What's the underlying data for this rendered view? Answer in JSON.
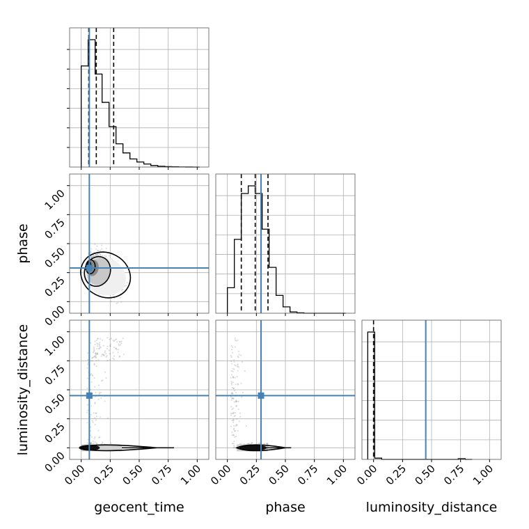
{
  "chart_data": {
    "type": "corner",
    "parameters": [
      "geocent_time",
      "phase",
      "luminosity_distance"
    ],
    "axis_labels": {
      "x": [
        "geocent_time",
        "phase",
        "luminosity_distance"
      ],
      "y": [
        "phase",
        "luminosity_distance"
      ]
    },
    "ticks": [
      0.0,
      0.25,
      0.5,
      0.75,
      1.0
    ],
    "tick_labels": [
      "0.00",
      "0.25",
      "0.50",
      "0.75",
      "1.00"
    ],
    "xlim": [
      -0.1,
      1.1
    ],
    "ylim": [
      -0.1,
      1.1
    ],
    "grid": true,
    "truths": {
      "geocent_time": 0.07,
      "phase": 0.29,
      "luminosity_distance": 0.45
    },
    "colors": {
      "truth": "#4682b4",
      "hist": "#000000",
      "quantile": "#000000",
      "points": "#555555"
    },
    "histograms": [
      {
        "parameter": "geocent_time",
        "bin_edges": [
          0.0,
          0.06,
          0.12,
          0.18,
          0.24,
          0.3,
          0.36,
          0.42,
          0.48,
          0.54,
          0.6,
          0.66,
          0.72,
          0.78,
          0.84,
          0.9,
          0.96,
          1.02
        ],
        "counts": [
          1.0,
          1.26,
          0.92,
          0.64,
          0.4,
          0.23,
          0.14,
          0.08,
          0.05,
          0.03,
          0.015,
          0.008,
          0.004,
          0.002,
          0.001,
          0.0005,
          0.0
        ],
        "quantiles": [
          0.065,
          0.13,
          0.28
        ]
      },
      {
        "parameter": "phase",
        "bin_edges": [
          0.0,
          0.06,
          0.12,
          0.18,
          0.24,
          0.3,
          0.36,
          0.42,
          0.48,
          0.54,
          0.6,
          0.66,
          0.72,
          0.78,
          0.84,
          0.9,
          0.96,
          1.02
        ],
        "counts": [
          0.2,
          0.58,
          0.94,
          1.0,
          0.94,
          0.66,
          0.36,
          0.14,
          0.05,
          0.01,
          0.003,
          0.0,
          0.0,
          0.0,
          0.0,
          0.0,
          0.0
        ],
        "quantiles": [
          0.12,
          0.24,
          0.35
        ]
      },
      {
        "parameter": "luminosity_distance",
        "bin_edges": [
          -0.05,
          0.01,
          0.07,
          0.13,
          0.19,
          0.25,
          0.31,
          0.37,
          0.43,
          0.49,
          0.55,
          0.61,
          0.67,
          0.73,
          0.79,
          0.85
        ],
        "counts": [
          1.0,
          0.01,
          0.0,
          0.0,
          0.0,
          0.0,
          0.0,
          0.0,
          0.0,
          0.0,
          0.0,
          0.0,
          0.0,
          0.005,
          0.0
        ],
        "quantiles": [
          0.0
        ]
      }
    ],
    "density_panels": [
      {
        "x": "geocent_time",
        "y": "phase",
        "shape": "main"
      },
      {
        "x": "geocent_time",
        "y": "luminosity_distance",
        "shape": "flat"
      },
      {
        "x": "phase",
        "y": "luminosity_distance",
        "shape": "flat"
      }
    ]
  }
}
